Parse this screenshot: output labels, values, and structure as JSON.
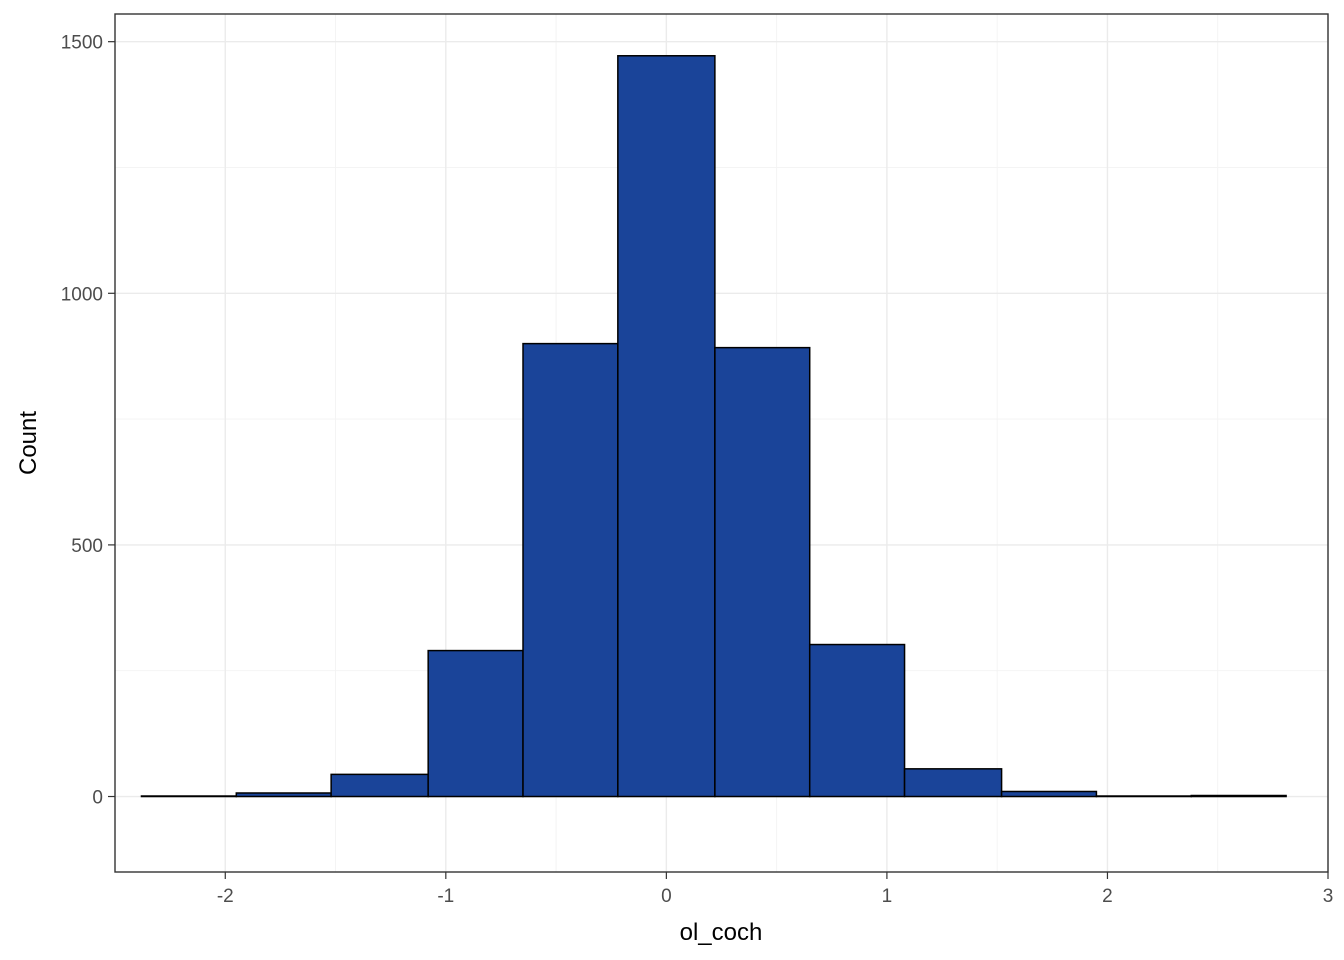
{
  "chart_data": {
    "type": "bar",
    "subtype": "histogram",
    "title": "",
    "xlabel": "ol_coch",
    "ylabel": "Count",
    "xlim": [
      -2.5,
      3.0
    ],
    "ylim": [
      -150,
      1555
    ],
    "grid": true,
    "legend": "none",
    "colors": {
      "fill": "#1a4499",
      "outline": "#000000",
      "background": "#ffffff",
      "grid": "#ebebeb"
    },
    "x_ticks": [
      {
        "value": -2,
        "label": "-2"
      },
      {
        "value": -1,
        "label": "-1"
      },
      {
        "value": 0,
        "label": "0"
      },
      {
        "value": 1,
        "label": "1"
      },
      {
        "value": 2,
        "label": "2"
      },
      {
        "value": 3,
        "label": "3"
      }
    ],
    "y_ticks": [
      {
        "value": 0,
        "label": "0"
      },
      {
        "value": 500,
        "label": "500"
      },
      {
        "value": 1000,
        "label": "1000"
      },
      {
        "value": 1500,
        "label": "1500"
      }
    ],
    "bins": [
      {
        "x0": -2.38,
        "x1": -1.95,
        "count": 1
      },
      {
        "x0": -1.95,
        "x1": -1.52,
        "count": 7
      },
      {
        "x0": -1.52,
        "x1": -1.08,
        "count": 44
      },
      {
        "x0": -1.08,
        "x1": -0.65,
        "count": 290
      },
      {
        "x0": -0.65,
        "x1": -0.22,
        "count": 900
      },
      {
        "x0": -0.22,
        "x1": 0.22,
        "count": 1472
      },
      {
        "x0": 0.22,
        "x1": 0.65,
        "count": 892
      },
      {
        "x0": 0.65,
        "x1": 1.08,
        "count": 302
      },
      {
        "x0": 1.08,
        "x1": 1.52,
        "count": 55
      },
      {
        "x0": 1.52,
        "x1": 1.95,
        "count": 10
      },
      {
        "x0": 1.95,
        "x1": 2.38,
        "count": 1
      },
      {
        "x0": 2.38,
        "x1": 2.81,
        "count": 2
      }
    ]
  }
}
